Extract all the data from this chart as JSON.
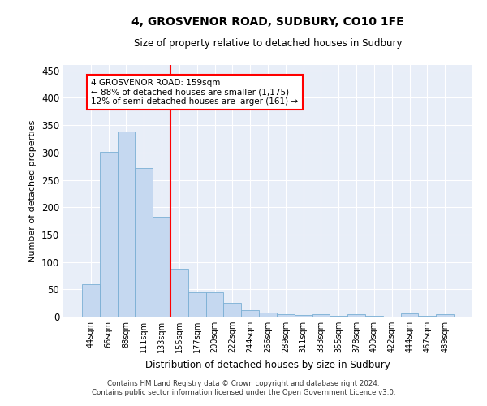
{
  "title": "4, GROSVENOR ROAD, SUDBURY, CO10 1FE",
  "subtitle": "Size of property relative to detached houses in Sudbury",
  "xlabel": "Distribution of detached houses by size in Sudbury",
  "ylabel": "Number of detached properties",
  "bar_color": "#c5d8f0",
  "bar_edge_color": "#7aafd4",
  "background_color": "#e8eef8",
  "grid_color": "#ffffff",
  "vline_color": "red",
  "annotation_text_line1": "4 GROSVENOR ROAD: 159sqm",
  "annotation_text_line2": "← 88% of detached houses are smaller (1,175)",
  "annotation_text_line3": "12% of semi-detached houses are larger (161) →",
  "annotation_box_color": "white",
  "annotation_box_edge": "red",
  "categories": [
    "44sqm",
    "66sqm",
    "88sqm",
    "111sqm",
    "133sqm",
    "155sqm",
    "177sqm",
    "200sqm",
    "222sqm",
    "244sqm",
    "266sqm",
    "289sqm",
    "311sqm",
    "333sqm",
    "355sqm",
    "378sqm",
    "400sqm",
    "422sqm",
    "444sqm",
    "467sqm",
    "489sqm"
  ],
  "values": [
    60,
    301,
    338,
    272,
    183,
    88,
    45,
    45,
    25,
    12,
    7,
    4,
    3,
    4,
    2,
    5,
    1,
    0,
    6,
    1,
    5
  ],
  "ylim": [
    0,
    460
  ],
  "yticks": [
    0,
    50,
    100,
    150,
    200,
    250,
    300,
    350,
    400,
    450
  ],
  "footer_line1": "Contains HM Land Registry data © Crown copyright and database right 2024.",
  "footer_line2": "Contains public sector information licensed under the Open Government Licence v3.0."
}
